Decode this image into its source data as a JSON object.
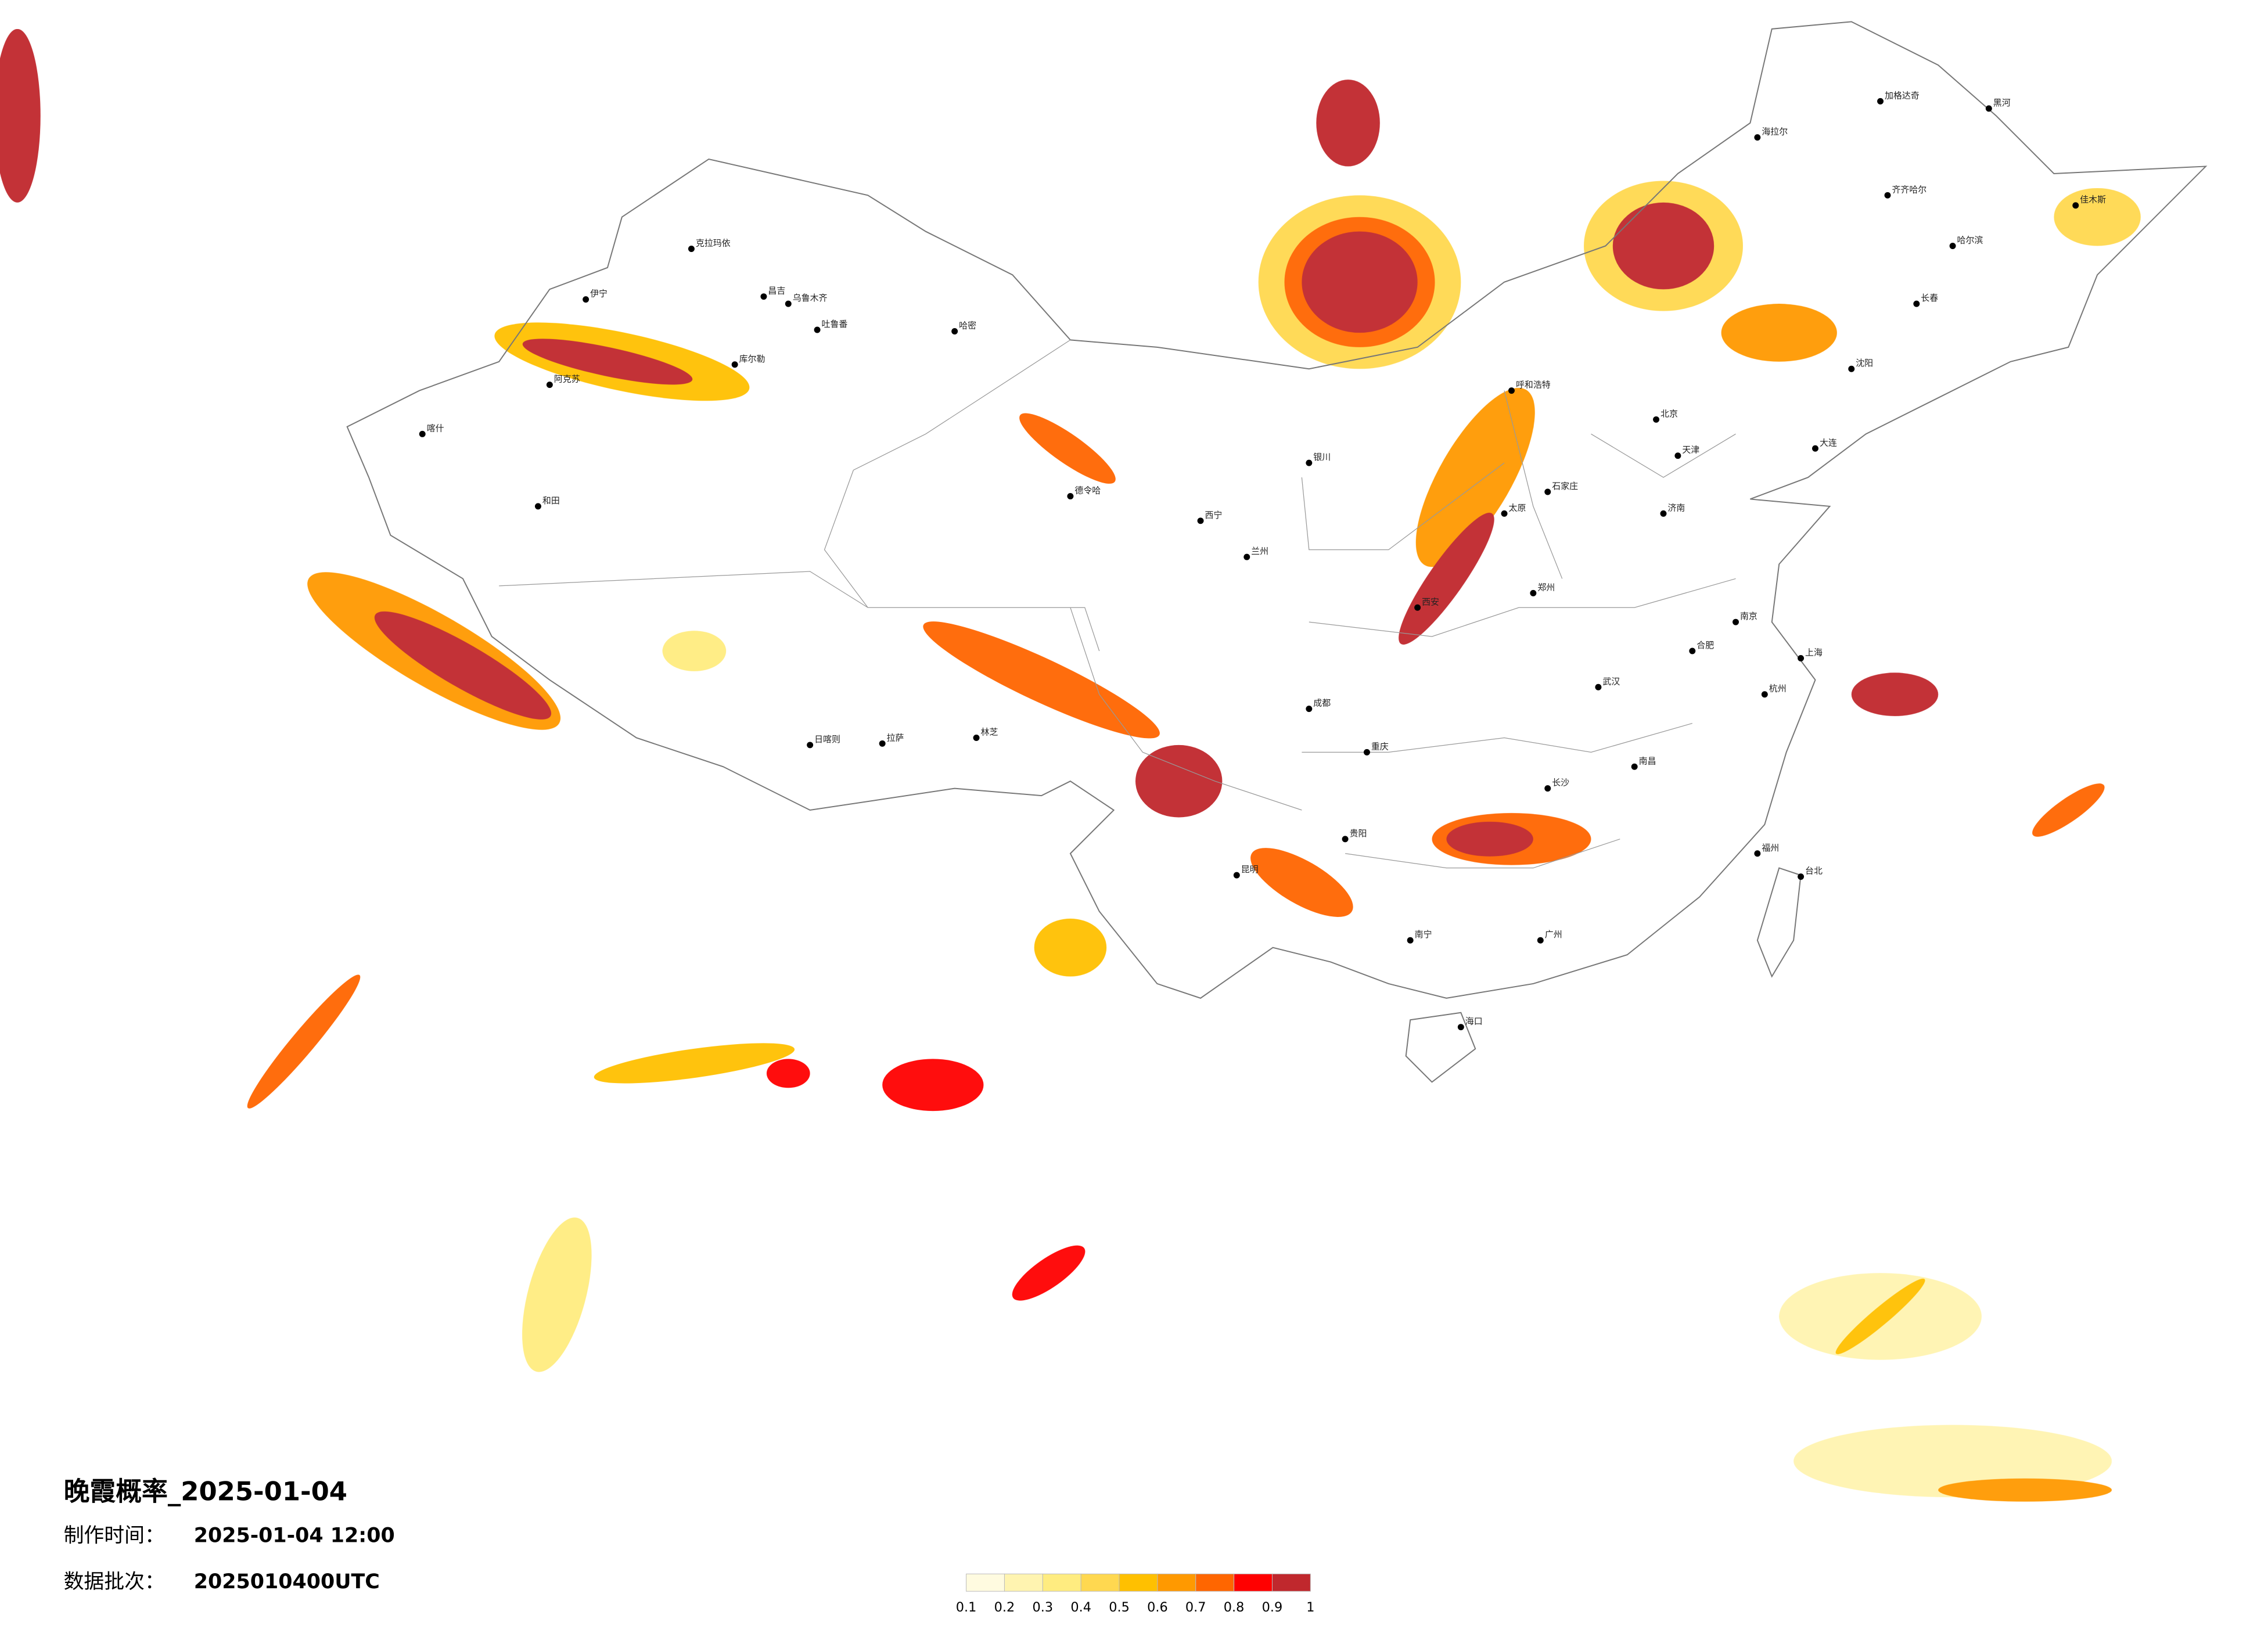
{
  "title": "晚霞概率_2025-01-04",
  "made_time_label": "制作时间：",
  "made_time": "2025-01-04 12:00",
  "batch_label": "数据批次：",
  "batch": "2025010400UTC",
  "colorbar": {
    "ticks": [
      0.1,
      0.2,
      0.3,
      0.4,
      0.5,
      0.6,
      0.7,
      0.8,
      0.9,
      1
    ],
    "colors": [
      "#fffbe0",
      "#fff4b0",
      "#ffec80",
      "#ffd850",
      "#ffc000",
      "#ff9900",
      "#ff6600",
      "#ff0000",
      "#c0282d"
    ]
  },
  "cities": [
    "克拉玛依",
    "伊宁",
    "阿克苏",
    "喀什",
    "和田",
    "昌吉",
    "乌鲁木齐",
    "吐鲁番",
    "哈密",
    "库尔勒",
    "德令哈",
    "拉萨",
    "日喀则",
    "林芝",
    "西宁",
    "兰州",
    "银川",
    "呼和浩特",
    "北京",
    "天津",
    "石家庄",
    "太原",
    "济南",
    "郑州",
    "西安",
    "成都",
    "重庆",
    "贵阳",
    "昆明",
    "南宁",
    "广州",
    "长沙",
    "武汉",
    "南昌",
    "合肥",
    "南京",
    "上海",
    "杭州",
    "福州",
    "台北",
    "海口",
    "哈尔滨",
    "长春",
    "沈阳",
    "大连",
    "海拉尔",
    "加格达奇",
    "黑河",
    "齐齐哈尔",
    "佳木斯"
  ]
}
